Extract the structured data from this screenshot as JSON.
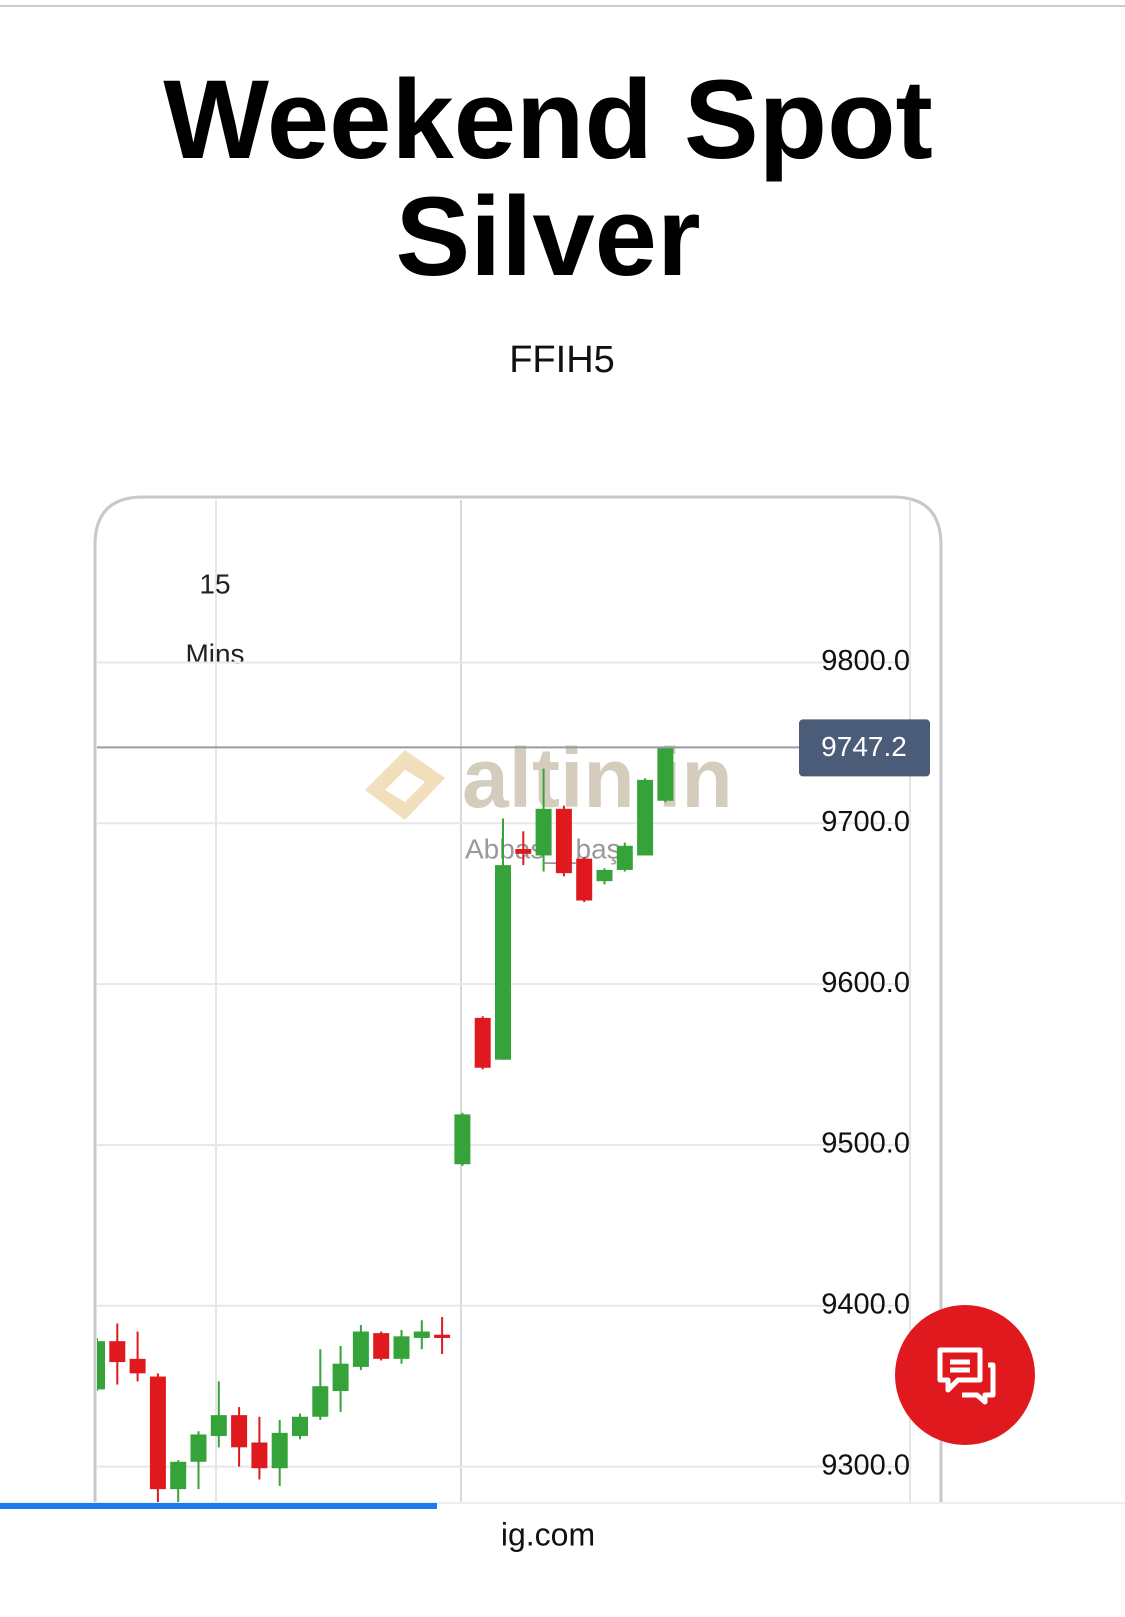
{
  "header": {
    "title": "Weekend Spot Silver",
    "symbol": "FFIH5"
  },
  "chart_data": {
    "type": "candlestick",
    "interval_number": "15",
    "interval_unit": "Mins",
    "open": [
      9348,
      9378,
      9367,
      9356,
      9286,
      9303,
      9319,
      9332,
      9315,
      9299,
      9319,
      9331,
      9347,
      9362,
      9383,
      9367,
      9380,
      9382,
      9488,
      9579,
      9553,
      9684,
      9680,
      9709,
      9678,
      9664,
      9671,
      9680,
      9714
    ],
    "high": [
      9380,
      9389,
      9384,
      9358,
      9304,
      9322,
      9353,
      9337,
      9331,
      9329,
      9333,
      9373,
      9375,
      9388,
      9384,
      9385,
      9391,
      9393,
      9520,
      9580,
      9703,
      9695,
      9734,
      9711,
      9679,
      9672,
      9688,
      9728,
      9747.2
    ],
    "low": [
      9347,
      9351,
      9353,
      9277,
      9277,
      9286,
      9312,
      9300,
      9292,
      9288,
      9317,
      9329,
      9334,
      9360,
      9366,
      9364,
      9373,
      9370,
      9487,
      9547,
      9553,
      9674,
      9670,
      9667,
      9651,
      9662,
      9670,
      9680,
      9713
    ],
    "close": [
      9378,
      9365,
      9358,
      9286,
      9303,
      9320,
      9332,
      9312,
      9299,
      9321,
      9331,
      9350,
      9364,
      9384,
      9367,
      9381,
      9384,
      9380,
      9519,
      9548,
      9674,
      9681,
      9709,
      9669,
      9652,
      9671,
      9686,
      9727,
      9747.2
    ],
    "up_color": "#35a33a",
    "down_color": "#e0191e",
    "ylim": [
      9278,
      9901
    ],
    "yticks": [
      {
        "value": 9300,
        "label": "9300.0"
      },
      {
        "value": 9400,
        "label": "9400.0"
      },
      {
        "value": 9500,
        "label": "9500.0"
      },
      {
        "value": 9600,
        "label": "9600.0"
      },
      {
        "value": 9700,
        "label": "9700.0"
      },
      {
        "value": 9800,
        "label": "9800.0"
      }
    ],
    "grid": true,
    "last_price": 9747.2,
    "watermark": "altin.in",
    "watermark_user": "Abbas__baş"
  },
  "footer": {
    "url": "ig.com"
  }
}
